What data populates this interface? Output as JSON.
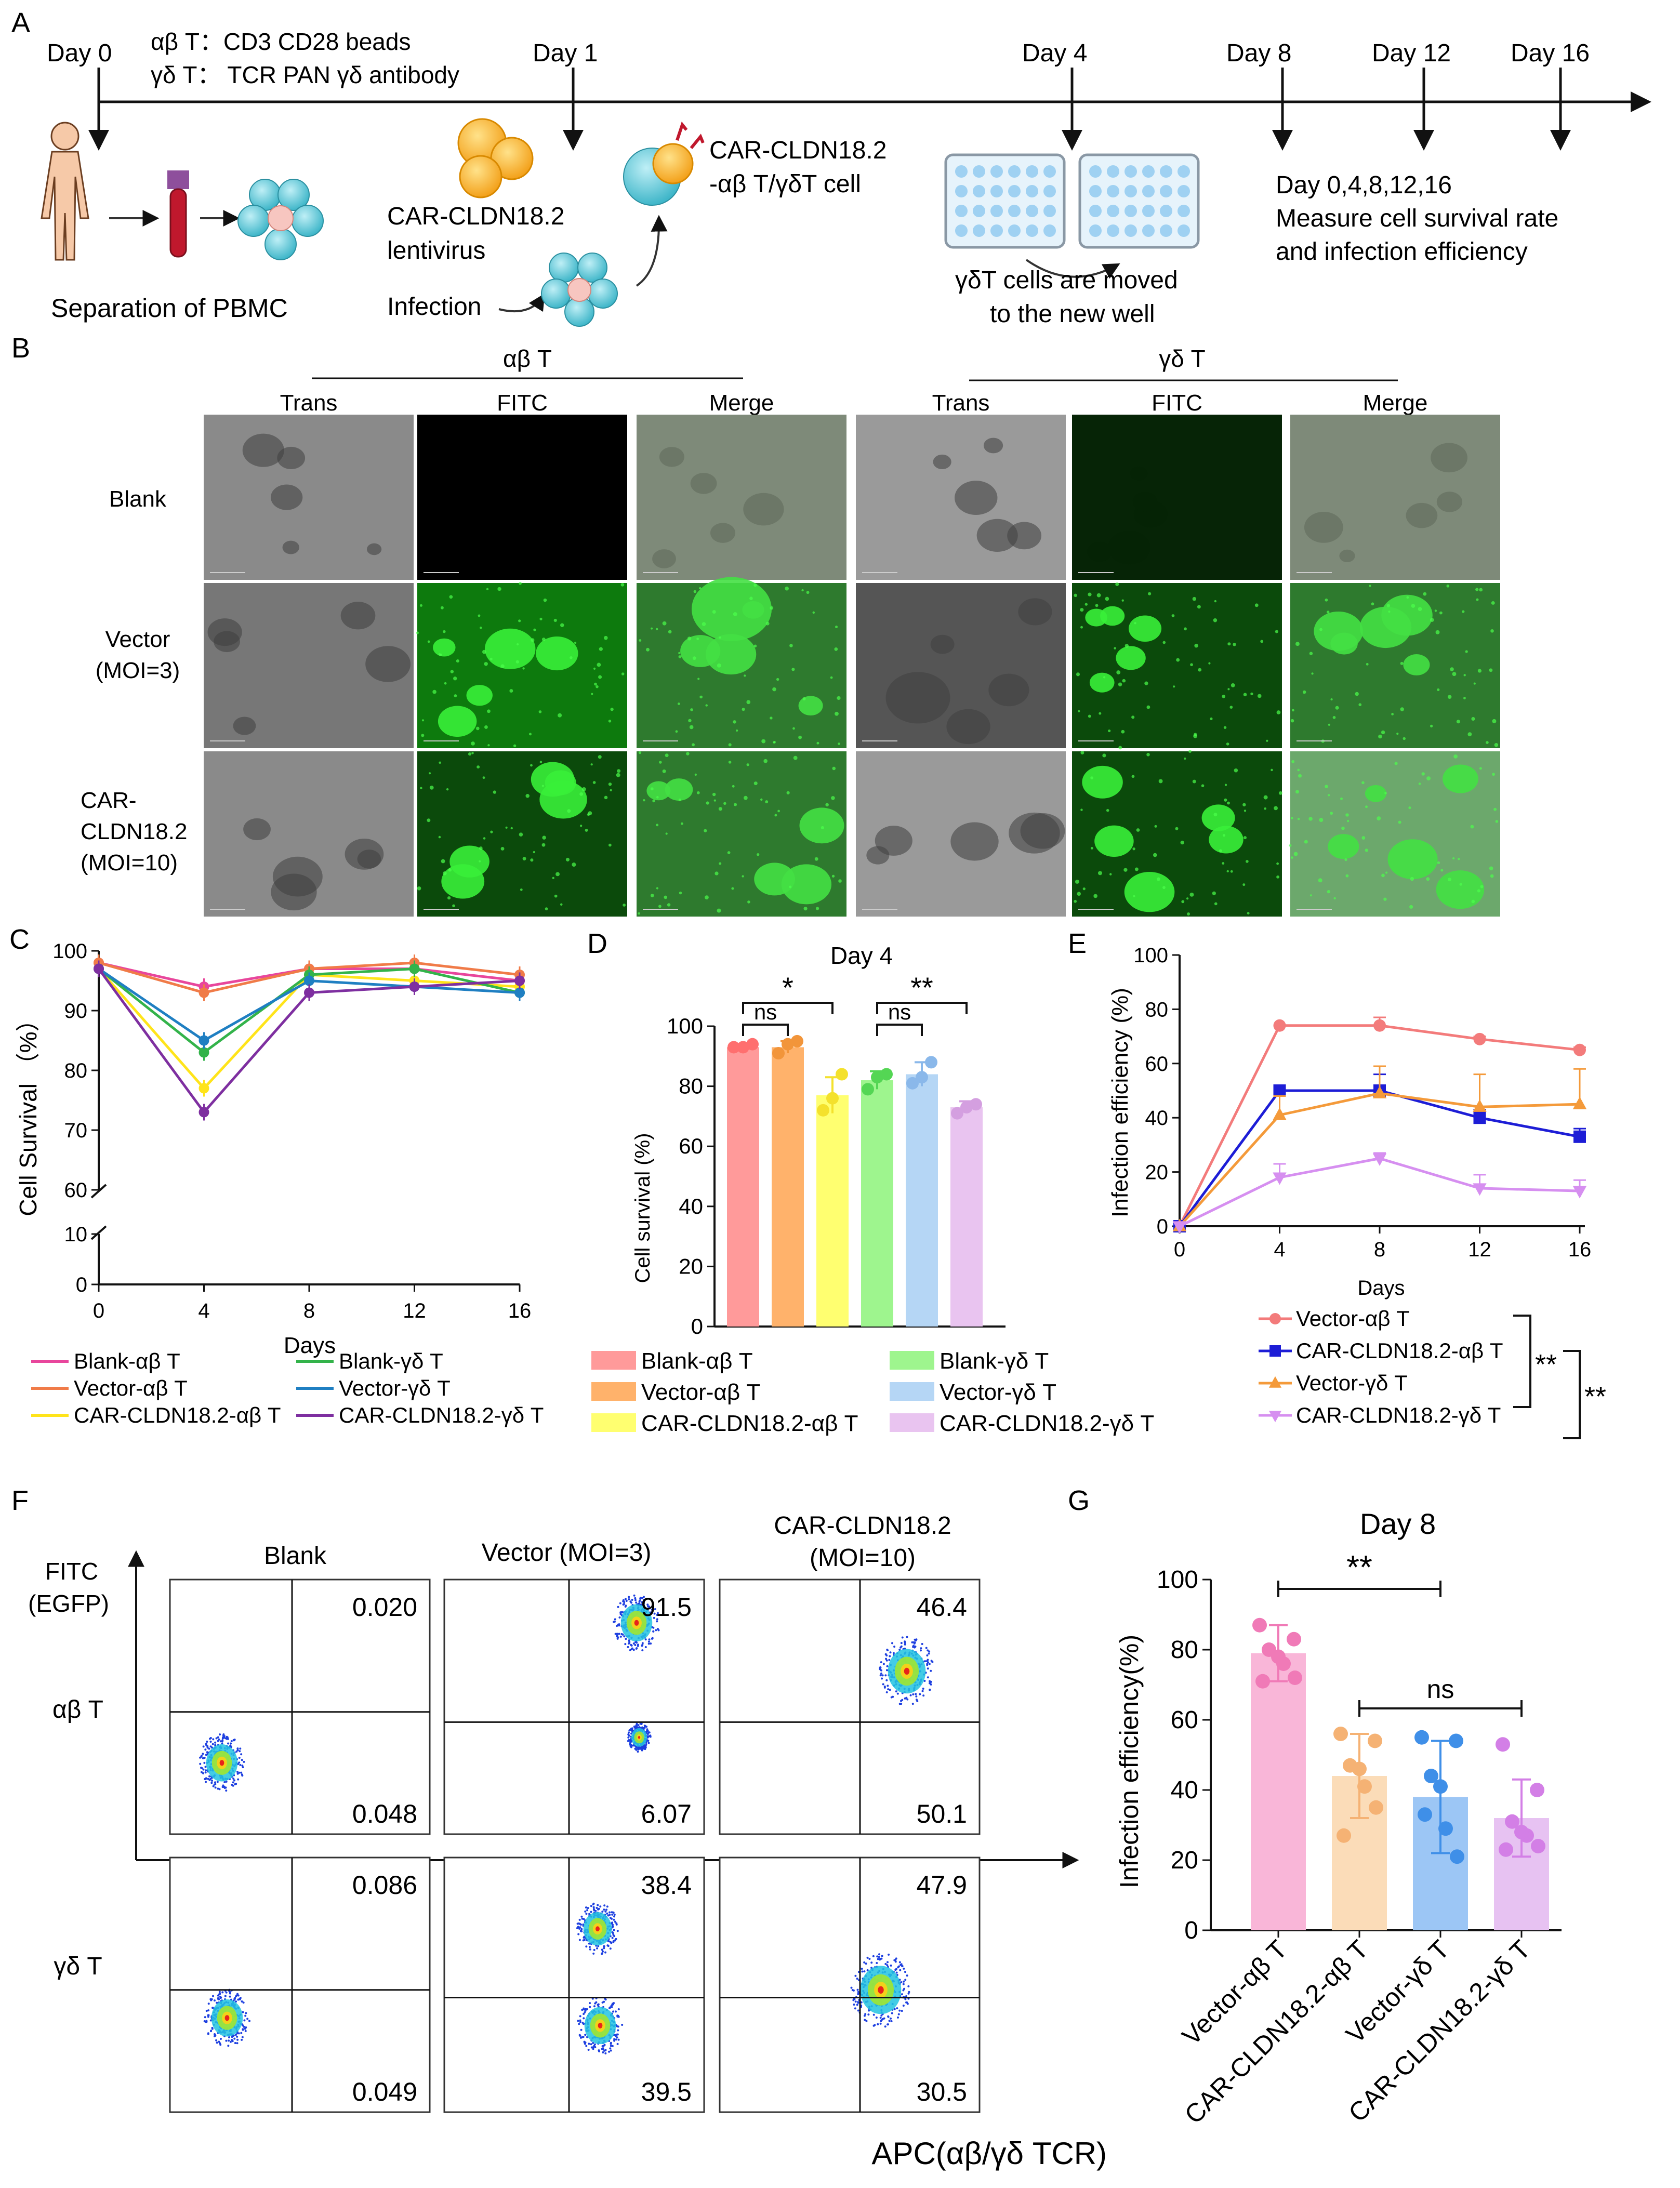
{
  "panel_letters": {
    "a": "A",
    "b": "B",
    "c": "C",
    "d": "D",
    "e": "E",
    "f": "F",
    "g": "G"
  },
  "panel_a": {
    "days": [
      "Day 0",
      "Day 1",
      "Day 4",
      "Day 8",
      "Day 12",
      "Day 16"
    ],
    "stim_ab": "αβ T：CD3 CD28 beads",
    "stim_gd": "γδ T： TCR PAN γδ antibody",
    "pbmc_label": "Separation of PBMC",
    "lentivirus_label_1": "CAR-CLDN18.2",
    "lentivirus_label_2": "lentivirus",
    "infection_label": "Infection",
    "car_cell_label_1": "CAR-CLDN18.2",
    "car_cell_label_2": "-αβ T/γδT cell",
    "moved_label_1": "γδT cells are moved",
    "moved_label_2": "to the new well",
    "measure_1": "Day 0,4,8,12,16",
    "measure_2": "Measure cell survival rate",
    "measure_3": "and infection efficiency"
  },
  "panel_b": {
    "group_ab": "αβ T",
    "group_gd": "γδ T",
    "columns": [
      "Trans",
      "FITC",
      "Merge",
      "Trans",
      "FITC",
      "Merge"
    ],
    "rows": [
      {
        "l1": "Blank",
        "l2": "",
        "l3": ""
      },
      {
        "l1": "Vector",
        "l2": "(MOI=3)",
        "l3": ""
      },
      {
        "l1": "CAR-",
        "l2": "CLDN18.2",
        "l3": "(MOI=10)"
      }
    ]
  },
  "panel_f": {
    "y_axis_1": "FITC",
    "y_axis_2": "(EGFP)",
    "x_axis": "APC(αβ/γδ TCR)",
    "col_titles": [
      "Blank",
      "Vector (MOI=3)",
      "CAR-CLDN18.2",
      "(MOI=10)"
    ],
    "row_labels": [
      "αβ T",
      "γδ T"
    ],
    "values": [
      [
        "0.020",
        "0.048",
        "91.5",
        "6.07",
        "46.4",
        "50.1"
      ],
      [
        "0.086",
        "0.049",
        "38.4",
        "39.5",
        "47.9",
        "30.5"
      ]
    ]
  },
  "chart_data": [
    {
      "id": "C",
      "type": "line",
      "xlabel": "Days",
      "ylabel": "Cell Survival （%）",
      "x": [
        0,
        4,
        8,
        12,
        16
      ],
      "xticks": [
        0,
        4,
        8,
        12,
        16
      ],
      "yticks": [
        0,
        10,
        60,
        70,
        80,
        90,
        100
      ],
      "ylim": [
        0,
        100
      ],
      "y_axis_break": [
        10,
        60
      ],
      "series": [
        {
          "name": "Blank-αβ T",
          "color": "#e8469c",
          "values": [
            98,
            94,
            97,
            97,
            95
          ]
        },
        {
          "name": "Vector-αβ T",
          "color": "#f07b48",
          "values": [
            98,
            93,
            97,
            98,
            96
          ]
        },
        {
          "name": "CAR-CLDN18.2-αβ T",
          "color": "#ffe41a",
          "values": [
            97,
            77,
            96,
            95,
            94
          ]
        },
        {
          "name": "Blank-γδ T",
          "color": "#33b34a",
          "values": [
            97,
            83,
            96,
            97,
            93
          ]
        },
        {
          "name": "Vector-γδ T",
          "color": "#1f7fc2",
          "values": [
            97,
            85,
            95,
            94,
            93
          ]
        },
        {
          "name": "CAR-CLDN18.2-γδ T",
          "color": "#7e2fa0",
          "values": [
            97,
            73,
            93,
            94,
            95
          ]
        }
      ]
    },
    {
      "id": "D",
      "type": "bar",
      "title": "Day 4",
      "ylabel": "Cell survival (%)",
      "ylim": [
        0,
        100
      ],
      "yticks": [
        0,
        20,
        40,
        60,
        80,
        100
      ],
      "categories": [
        "Blank-αβ T",
        "Vector-αβ T",
        "CAR-CLDN18.2-αβ T",
        "Blank-γδ T",
        "Vector-γδ T",
        "CAR-CLDN18.2-γδ T"
      ],
      "values": [
        93,
        93,
        77,
        82,
        84,
        73
      ],
      "errors": [
        1,
        2,
        6,
        3,
        4,
        2
      ],
      "points": [
        [
          93,
          93,
          94
        ],
        [
          91,
          94,
          95
        ],
        [
          72,
          76,
          84
        ],
        [
          79,
          83,
          84
        ],
        [
          81,
          83,
          88
        ],
        [
          71,
          73,
          74
        ]
      ],
      "colors": [
        "#ff9a9a",
        "#ffb26b",
        "#ffff70",
        "#9ef58e",
        "#b5d6f5",
        "#e9c4f0"
      ],
      "dot_colors": [
        "#ff6f6f",
        "#f2953a",
        "#f4e12c",
        "#54d654",
        "#8ab8ea",
        "#d49fe0"
      ],
      "significance": [
        {
          "groups": [
            0,
            1
          ],
          "label": "ns"
        },
        {
          "groups": [
            0,
            2
          ],
          "label": "*"
        },
        {
          "groups": [
            3,
            4
          ],
          "label": "ns"
        },
        {
          "groups": [
            3,
            5
          ],
          "label": "**"
        }
      ]
    },
    {
      "id": "E",
      "type": "line",
      "xlabel": "Days",
      "ylabel": "Infection efficiency (%)",
      "x": [
        0,
        4,
        8,
        12,
        16
      ],
      "xticks": [
        0,
        4,
        8,
        12,
        16
      ],
      "ylim": [
        0,
        100
      ],
      "yticks": [
        0,
        20,
        40,
        60,
        80,
        100
      ],
      "series": [
        {
          "name": "Vector-αβ T",
          "color": "#f37b7b",
          "marker": "circle",
          "values": [
            0,
            74,
            74,
            69,
            65
          ],
          "errors": [
            0,
            0,
            3,
            1,
            1
          ]
        },
        {
          "name": "CAR-CLDN18.2-αβ T",
          "color": "#1d1dd6",
          "marker": "square",
          "values": [
            0,
            50,
            50,
            40,
            33
          ],
          "errors": [
            0,
            1,
            6,
            3,
            3
          ]
        },
        {
          "name": "Vector-γδ T",
          "color": "#f49a3a",
          "marker": "triangle",
          "values": [
            0,
            41,
            49,
            44,
            45
          ],
          "errors": [
            0,
            7,
            10,
            12,
            13
          ]
        },
        {
          "name": "CAR-CLDN18.2-γδ T",
          "color": "#d68ff0",
          "marker": "down-triangle",
          "values": [
            0,
            18,
            25,
            14,
            13
          ],
          "errors": [
            0,
            5,
            2,
            5,
            4
          ]
        }
      ],
      "significance": [
        {
          "label": "**"
        },
        {
          "label": "**"
        }
      ]
    },
    {
      "id": "G",
      "type": "bar",
      "title": "Day 8",
      "ylabel": "Infection efficiency(%)",
      "ylim": [
        0,
        100
      ],
      "yticks": [
        0,
        20,
        40,
        60,
        80,
        100
      ],
      "categories": [
        "Vector-αβ T",
        "CAR-CLDN18.2-αβ T",
        "Vector-γδ T",
        "CAR-CLDN18.2-γδ T"
      ],
      "values": [
        79,
        44,
        38,
        32
      ],
      "errors": [
        8,
        12,
        16,
        11
      ],
      "points": [
        [
          87,
          83,
          80,
          76,
          72,
          71,
          78
        ],
        [
          56,
          54,
          47,
          41,
          35,
          27,
          46
        ],
        [
          55,
          54,
          44,
          29,
          21,
          33,
          41
        ],
        [
          53,
          40,
          31,
          27,
          24,
          23,
          28
        ]
      ],
      "colors": [
        "#f9b6d8",
        "#fbdcb8",
        "#9cc6f5",
        "#e7c2f2"
      ],
      "dot_colors": [
        "#f07ab7",
        "#f5b274",
        "#3f8fe8",
        "#d37fe6"
      ],
      "significance": [
        {
          "groups": [
            0,
            2
          ],
          "label": "**"
        },
        {
          "groups": [
            1,
            3
          ],
          "label": "ns"
        }
      ]
    }
  ]
}
